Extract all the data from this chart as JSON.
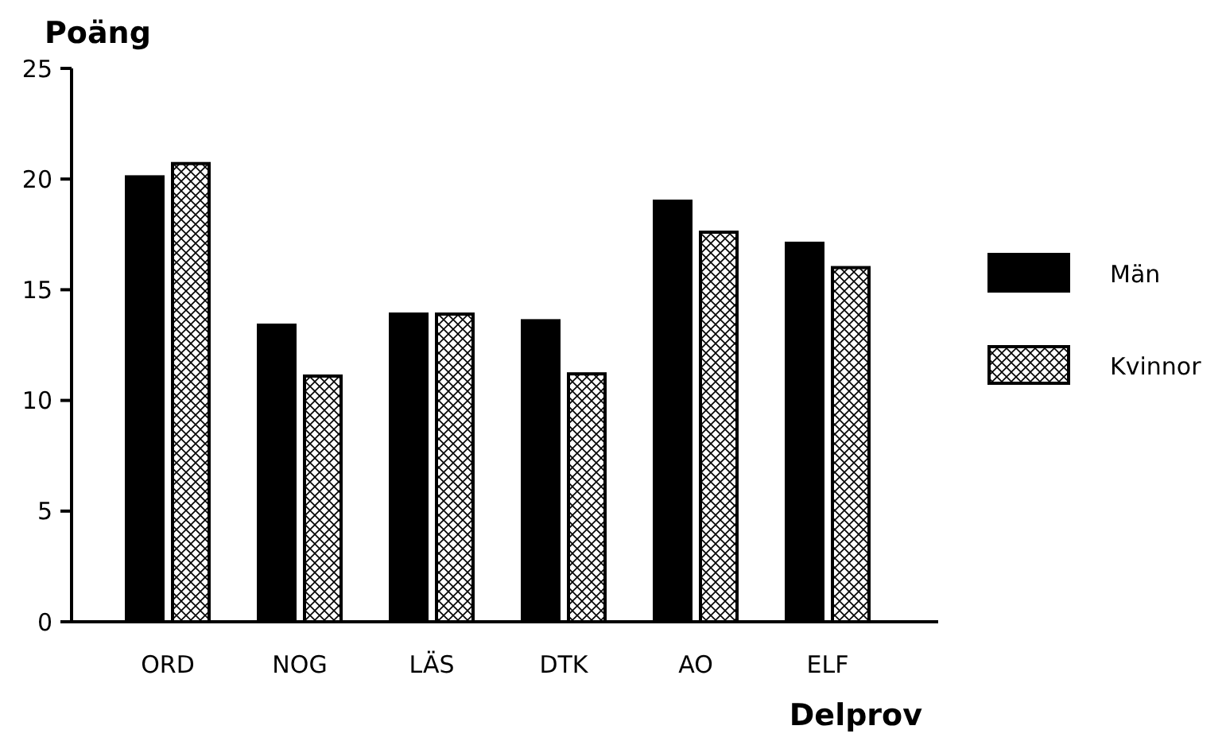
{
  "chart_data": {
    "type": "bar",
    "ylabel": "Poäng",
    "xlabel": "Delprov",
    "categories": [
      "ORD",
      "NOG",
      "LÄS",
      "DTK",
      "AO",
      "ELF"
    ],
    "series": [
      {
        "name": "Män",
        "color": "#000000",
        "values": [
          20.1,
          13.4,
          13.9,
          13.6,
          19.0,
          17.1
        ]
      },
      {
        "name": "Kvinnor",
        "color": "#000000",
        "values": [
          20.7,
          11.1,
          13.9,
          11.2,
          17.6,
          16.0
        ]
      }
    ],
    "ylim": [
      0,
      25
    ],
    "yticks": [
      0,
      5,
      10,
      15,
      20,
      25
    ],
    "grid": false,
    "legend": "right"
  }
}
